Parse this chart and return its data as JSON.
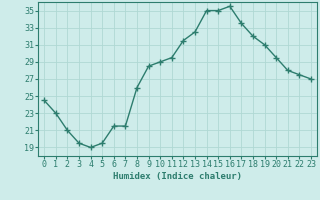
{
  "x": [
    0,
    1,
    2,
    3,
    4,
    5,
    6,
    7,
    8,
    9,
    10,
    11,
    12,
    13,
    14,
    15,
    16,
    17,
    18,
    19,
    20,
    21,
    22,
    23
  ],
  "y": [
    24.5,
    23.0,
    21.0,
    19.5,
    19.0,
    19.5,
    21.5,
    21.5,
    26.0,
    28.5,
    29.0,
    29.5,
    31.5,
    32.5,
    35.0,
    35.0,
    35.5,
    33.5,
    32.0,
    31.0,
    29.5,
    28.0,
    27.5,
    27.0
  ],
  "line_color": "#2d7d6e",
  "marker": "+",
  "marker_size": 4,
  "bg_color": "#ceecea",
  "grid_color": "#b0d8d4",
  "xlabel": "Humidex (Indice chaleur)",
  "xlim": [
    -0.5,
    23.5
  ],
  "ylim": [
    18,
    36
  ],
  "yticks": [
    19,
    21,
    23,
    25,
    27,
    29,
    31,
    33,
    35
  ],
  "xticks": [
    0,
    1,
    2,
    3,
    4,
    5,
    6,
    7,
    8,
    9,
    10,
    11,
    12,
    13,
    14,
    15,
    16,
    17,
    18,
    19,
    20,
    21,
    22,
    23
  ],
  "xlabel_fontsize": 6.5,
  "tick_fontsize": 6.0,
  "line_width": 1.0,
  "marker_edge_width": 1.0
}
